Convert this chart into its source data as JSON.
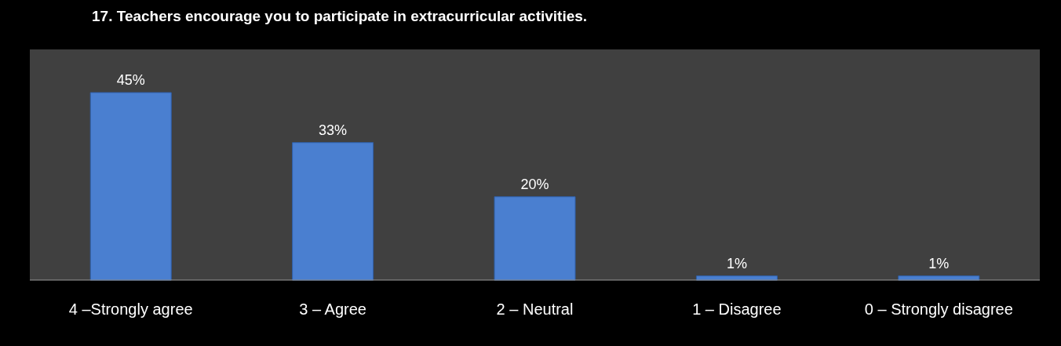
{
  "chart_data": {
    "type": "bar",
    "title": "17. Teachers encourage you to participate in extracurricular activities.",
    "categories": [
      "4 –Strongly agree",
      "3 – Agree",
      "2 – Neutral",
      "1 – Disagree",
      "0 – Strongly disagree"
    ],
    "values": [
      45,
      33,
      20,
      1,
      1
    ],
    "value_labels": [
      "45%",
      "33%",
      "20%",
      "1%",
      "1%"
    ],
    "color": "#4a7fd0",
    "grid": false
  }
}
